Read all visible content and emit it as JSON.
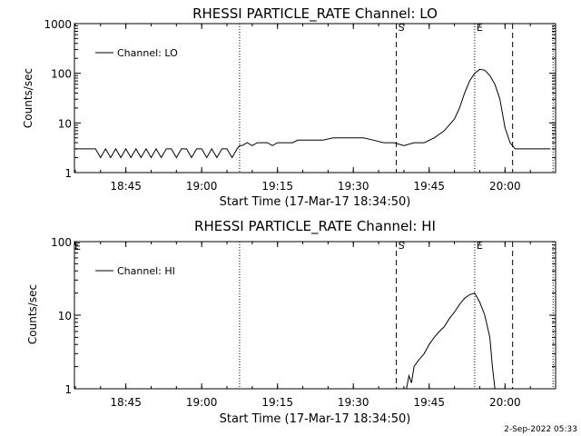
{
  "footer": {
    "date_stamp": "2-Sep-2022 05:33"
  },
  "chart_data": [
    {
      "type": "line",
      "title": "RHESSI PARTICLE_RATE Channel: LO",
      "xlabel": "Start Time (17-Mar-17 18:34:50)",
      "ylabel": "Counts/sec",
      "yscale": "log",
      "ylim": [
        1,
        1000
      ],
      "xlim": [
        "18:34:50",
        "20:10:00"
      ],
      "x_ticks": [
        "18:45",
        "19:00",
        "19:15",
        "19:30",
        "19:45",
        "20:00"
      ],
      "y_ticks": [
        "1",
        "10",
        "100",
        "1000"
      ],
      "legend": {
        "position": "top-left",
        "entries": [
          "Channel: LO"
        ]
      },
      "markers": [
        {
          "time": "19:07:30",
          "style": "dotted",
          "label": ""
        },
        {
          "time": "19:38:30",
          "style": "dashed",
          "label": "S"
        },
        {
          "time": "19:54:00",
          "style": "dotted",
          "label": "E"
        },
        {
          "time": "20:01:30",
          "style": "dashed",
          "label": ""
        },
        {
          "time": "20:09:30",
          "style": "dotted",
          "label": ""
        }
      ],
      "series": [
        {
          "name": "Channel: LO",
          "x": [
            "18:35",
            "18:39",
            "18:40",
            "18:41",
            "18:42",
            "18:43",
            "18:44",
            "18:45",
            "18:46",
            "18:47",
            "18:48",
            "18:49",
            "18:50",
            "18:51",
            "18:52",
            "18:53",
            "18:54",
            "18:55",
            "18:56",
            "18:57",
            "18:58",
            "18:59",
            "19:00",
            "19:01",
            "19:02",
            "19:03",
            "19:04",
            "19:05",
            "19:06",
            "19:07",
            "19:07:30",
            "19:08",
            "19:09",
            "19:10",
            "19:11",
            "19:12",
            "19:13",
            "19:14",
            "19:15",
            "19:16",
            "19:17",
            "19:18",
            "19:19",
            "19:20",
            "19:22",
            "19:24",
            "19:26",
            "19:28",
            "19:30",
            "19:32",
            "19:34",
            "19:36",
            "19:38",
            "19:40",
            "19:42",
            "19:44",
            "19:46",
            "19:48",
            "19:50",
            "19:51",
            "19:52",
            "19:53",
            "19:54",
            "19:55",
            "19:56",
            "19:57",
            "19:58",
            "19:59",
            "20:00",
            "20:01",
            "20:02",
            "20:03",
            "20:04",
            "20:05",
            "20:06",
            "20:07",
            "20:08",
            "20:09"
          ],
          "y": [
            3,
            3,
            2,
            3,
            2,
            3,
            2,
            3,
            2,
            3,
            2,
            3,
            2,
            3,
            2,
            3,
            3,
            2,
            3,
            3,
            2,
            3,
            3,
            2,
            3,
            2,
            3,
            3,
            2,
            3,
            3.5,
            3.5,
            4,
            3.5,
            4,
            4,
            4,
            3.5,
            4,
            4,
            4,
            4,
            4.5,
            4.5,
            4.5,
            4.5,
            5,
            5,
            5,
            5,
            4.5,
            4,
            4,
            3.5,
            4,
            4,
            5,
            7,
            12,
            20,
            40,
            70,
            100,
            120,
            115,
            90,
            60,
            30,
            8,
            4,
            3,
            3,
            3,
            3,
            3,
            3,
            3,
            3
          ]
        }
      ]
    },
    {
      "type": "line",
      "title": "RHESSI PARTICLE_RATE Channel: HI",
      "xlabel": "Start Time (17-Mar-17 18:34:50)",
      "ylabel": "Counts/sec",
      "yscale": "log",
      "ylim": [
        1,
        100
      ],
      "xlim": [
        "18:34:50",
        "20:10:00"
      ],
      "x_ticks": [
        "18:45",
        "19:00",
        "19:15",
        "19:30",
        "19:45",
        "20:00"
      ],
      "y_ticks": [
        "1",
        "10",
        "100"
      ],
      "legend": {
        "position": "top-left",
        "entries": [
          "Channel: HI"
        ]
      },
      "corner_label": "E",
      "markers": [
        {
          "time": "19:07:30",
          "style": "dotted",
          "label": ""
        },
        {
          "time": "19:38:30",
          "style": "dashed",
          "label": "S"
        },
        {
          "time": "19:54:00",
          "style": "dotted",
          "label": "E"
        },
        {
          "time": "20:01:30",
          "style": "dashed",
          "label": ""
        },
        {
          "time": "20:09:30",
          "style": "dotted",
          "label": ""
        }
      ],
      "series": [
        {
          "name": "Channel: HI",
          "x": [
            "19:40:30",
            "19:41",
            "19:41:30",
            "19:42",
            "19:43",
            "19:44",
            "19:45",
            "19:46",
            "19:47",
            "19:48",
            "19:49",
            "19:50",
            "19:51",
            "19:52",
            "19:53",
            "19:54",
            "19:55",
            "19:56",
            "19:57",
            "19:57:30",
            "19:58"
          ],
          "y": [
            1,
            1.5,
            1.2,
            2,
            2.5,
            3,
            4,
            5,
            6,
            7,
            9,
            11,
            14,
            17,
            19,
            20,
            15,
            10,
            5,
            2,
            1
          ]
        }
      ]
    }
  ]
}
